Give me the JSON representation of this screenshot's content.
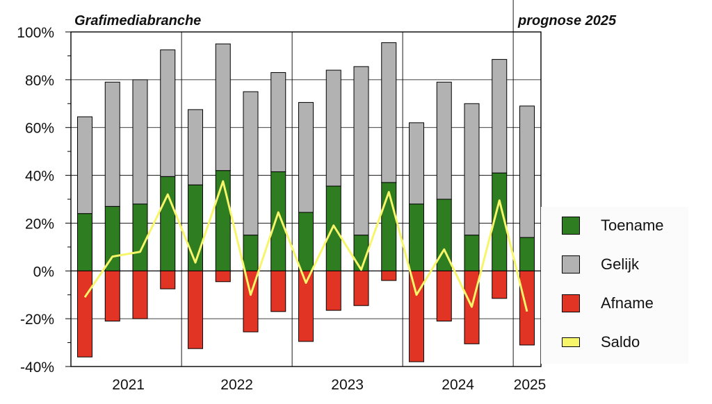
{
  "colors": {
    "toename": "#2f7d21",
    "gelijk": "#b2b2b2",
    "afname": "#e13424",
    "saldo": "#f7f56a",
    "grid": "#000000"
  },
  "chart_data": {
    "type": "bar",
    "title": "Grafimediabranche",
    "forecast_title": "prognose 2025",
    "ylim": [
      -40,
      100
    ],
    "yticks": [
      "100%",
      "80%",
      "60%",
      "40%",
      "20%",
      "0%",
      "-20%",
      "-40%"
    ],
    "ytick_values": [
      100,
      80,
      60,
      40,
      20,
      0,
      -20,
      -40
    ],
    "grid": true,
    "legend_position": "right",
    "year_labels": [
      "2021",
      "2022",
      "2023",
      "2024",
      "2025"
    ],
    "year_bar_counts": [
      4,
      4,
      4,
      4,
      1
    ],
    "series": [
      {
        "name": "Toename",
        "values": [
          24,
          27,
          28,
          39.5,
          36,
          42,
          15,
          41.5,
          24.5,
          35.5,
          15,
          37,
          28,
          30,
          15,
          41,
          14
        ]
      },
      {
        "name": "Gelijk",
        "values": [
          40.5,
          52,
          52,
          53,
          31.5,
          53,
          60,
          41.5,
          46,
          48.5,
          70.5,
          58.5,
          34,
          49,
          55,
          47.5,
          55
        ]
      },
      {
        "name": "Afname",
        "values": [
          -36,
          -21,
          -20,
          -7.5,
          -32.5,
          -4.5,
          -25.5,
          -17,
          -29.5,
          -16.5,
          -14.5,
          -4,
          -38,
          -21,
          -30.5,
          -11.5,
          -31
        ]
      },
      {
        "name": "Saldo",
        "values": [
          -11,
          6,
          8,
          32,
          3.5,
          37.5,
          -10,
          24.5,
          -5,
          19,
          0.5,
          33,
          -10,
          9,
          -15,
          29.5,
          -17
        ]
      }
    ]
  },
  "legend": {
    "items": [
      {
        "label": "Toename",
        "color": "#2f7d21",
        "kind": "box"
      },
      {
        "label": "Gelijk",
        "color": "#b2b2b2",
        "kind": "box"
      },
      {
        "label": "Afname",
        "color": "#e13424",
        "kind": "box"
      },
      {
        "label": "Saldo",
        "color": "#f7f56a",
        "kind": "line"
      }
    ]
  }
}
